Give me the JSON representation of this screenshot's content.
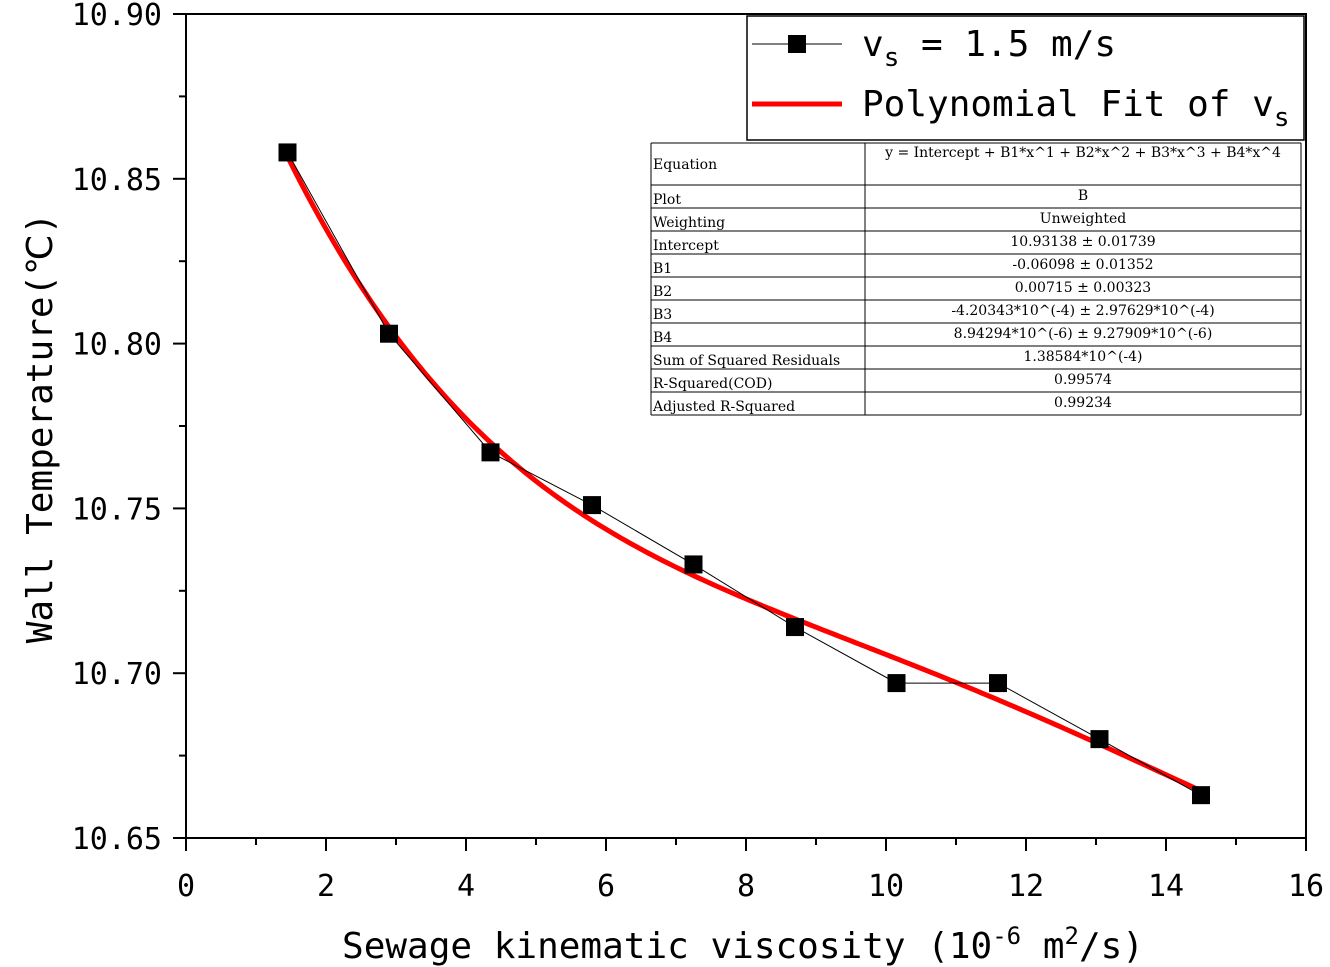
{
  "chart_data": {
    "type": "scatter",
    "title": "",
    "xlabel": "Sewage kinematic viscosity (10",
    "xlabel_exp": "-6",
    "xlabel_units_a": " m",
    "xlabel_units_exp": "2",
    "xlabel_units_b": "/s)",
    "ylabel": "Wall Temperature(℃)",
    "xlim": [
      0,
      16
    ],
    "ylim": [
      10.65,
      10.9
    ],
    "xticks": [
      "0",
      "2",
      "4",
      "6",
      "8",
      "10",
      "12",
      "14",
      "16"
    ],
    "yticks": [
      "10.65",
      "10.70",
      "10.75",
      "10.80",
      "10.85",
      "10.90"
    ],
    "grid": false,
    "legend_position": "top-right",
    "series": [
      {
        "name_base": "v",
        "name_sub": "s",
        "name_rest": " = 1.5 m/s",
        "marker": "square",
        "color": "#000000",
        "x": [
          1.45,
          2.9,
          4.35,
          5.8,
          7.25,
          8.7,
          10.15,
          11.6,
          13.05,
          14.5
        ],
        "y": [
          10.858,
          10.803,
          10.767,
          10.751,
          10.733,
          10.714,
          10.697,
          10.697,
          10.68,
          10.663
        ]
      }
    ],
    "fit": {
      "name_base": "Polynomial Fit of v",
      "name_sub": "s",
      "color": "#ff0000",
      "x_range": [
        1.45,
        14.5
      ],
      "coefficients": [
        10.93138,
        -0.06098,
        0.00715,
        -0.000420343,
        8.94294e-06
      ]
    },
    "stats_table": [
      {
        "label": "Equation",
        "value": "y = Intercept + B1*x^1 + B2*x^2 + B3*x^3 + B4*x^4"
      },
      {
        "label": "Plot",
        "value": "B"
      },
      {
        "label": "Weighting",
        "value": "Unweighted"
      },
      {
        "label": "Intercept",
        "value": "10.93138 ± 0.01739"
      },
      {
        "label": "B1",
        "value": "-0.06098 ± 0.01352"
      },
      {
        "label": "B2",
        "value": "0.00715 ± 0.00323"
      },
      {
        "label": "B3",
        "value": "-4.20343*10^(-4) ± 2.97629*10^(-4)"
      },
      {
        "label": "B4",
        "value": "8.94294*10^(-6) ± 9.27909*10^(-6)"
      },
      {
        "label": "Sum of Squared Residuals",
        "value": "1.38584*10^(-4)"
      },
      {
        "label": "R-Squared(COD)",
        "value": "0.99574"
      },
      {
        "label": "Adjusted R-Squared",
        "value": "0.99234"
      }
    ]
  }
}
